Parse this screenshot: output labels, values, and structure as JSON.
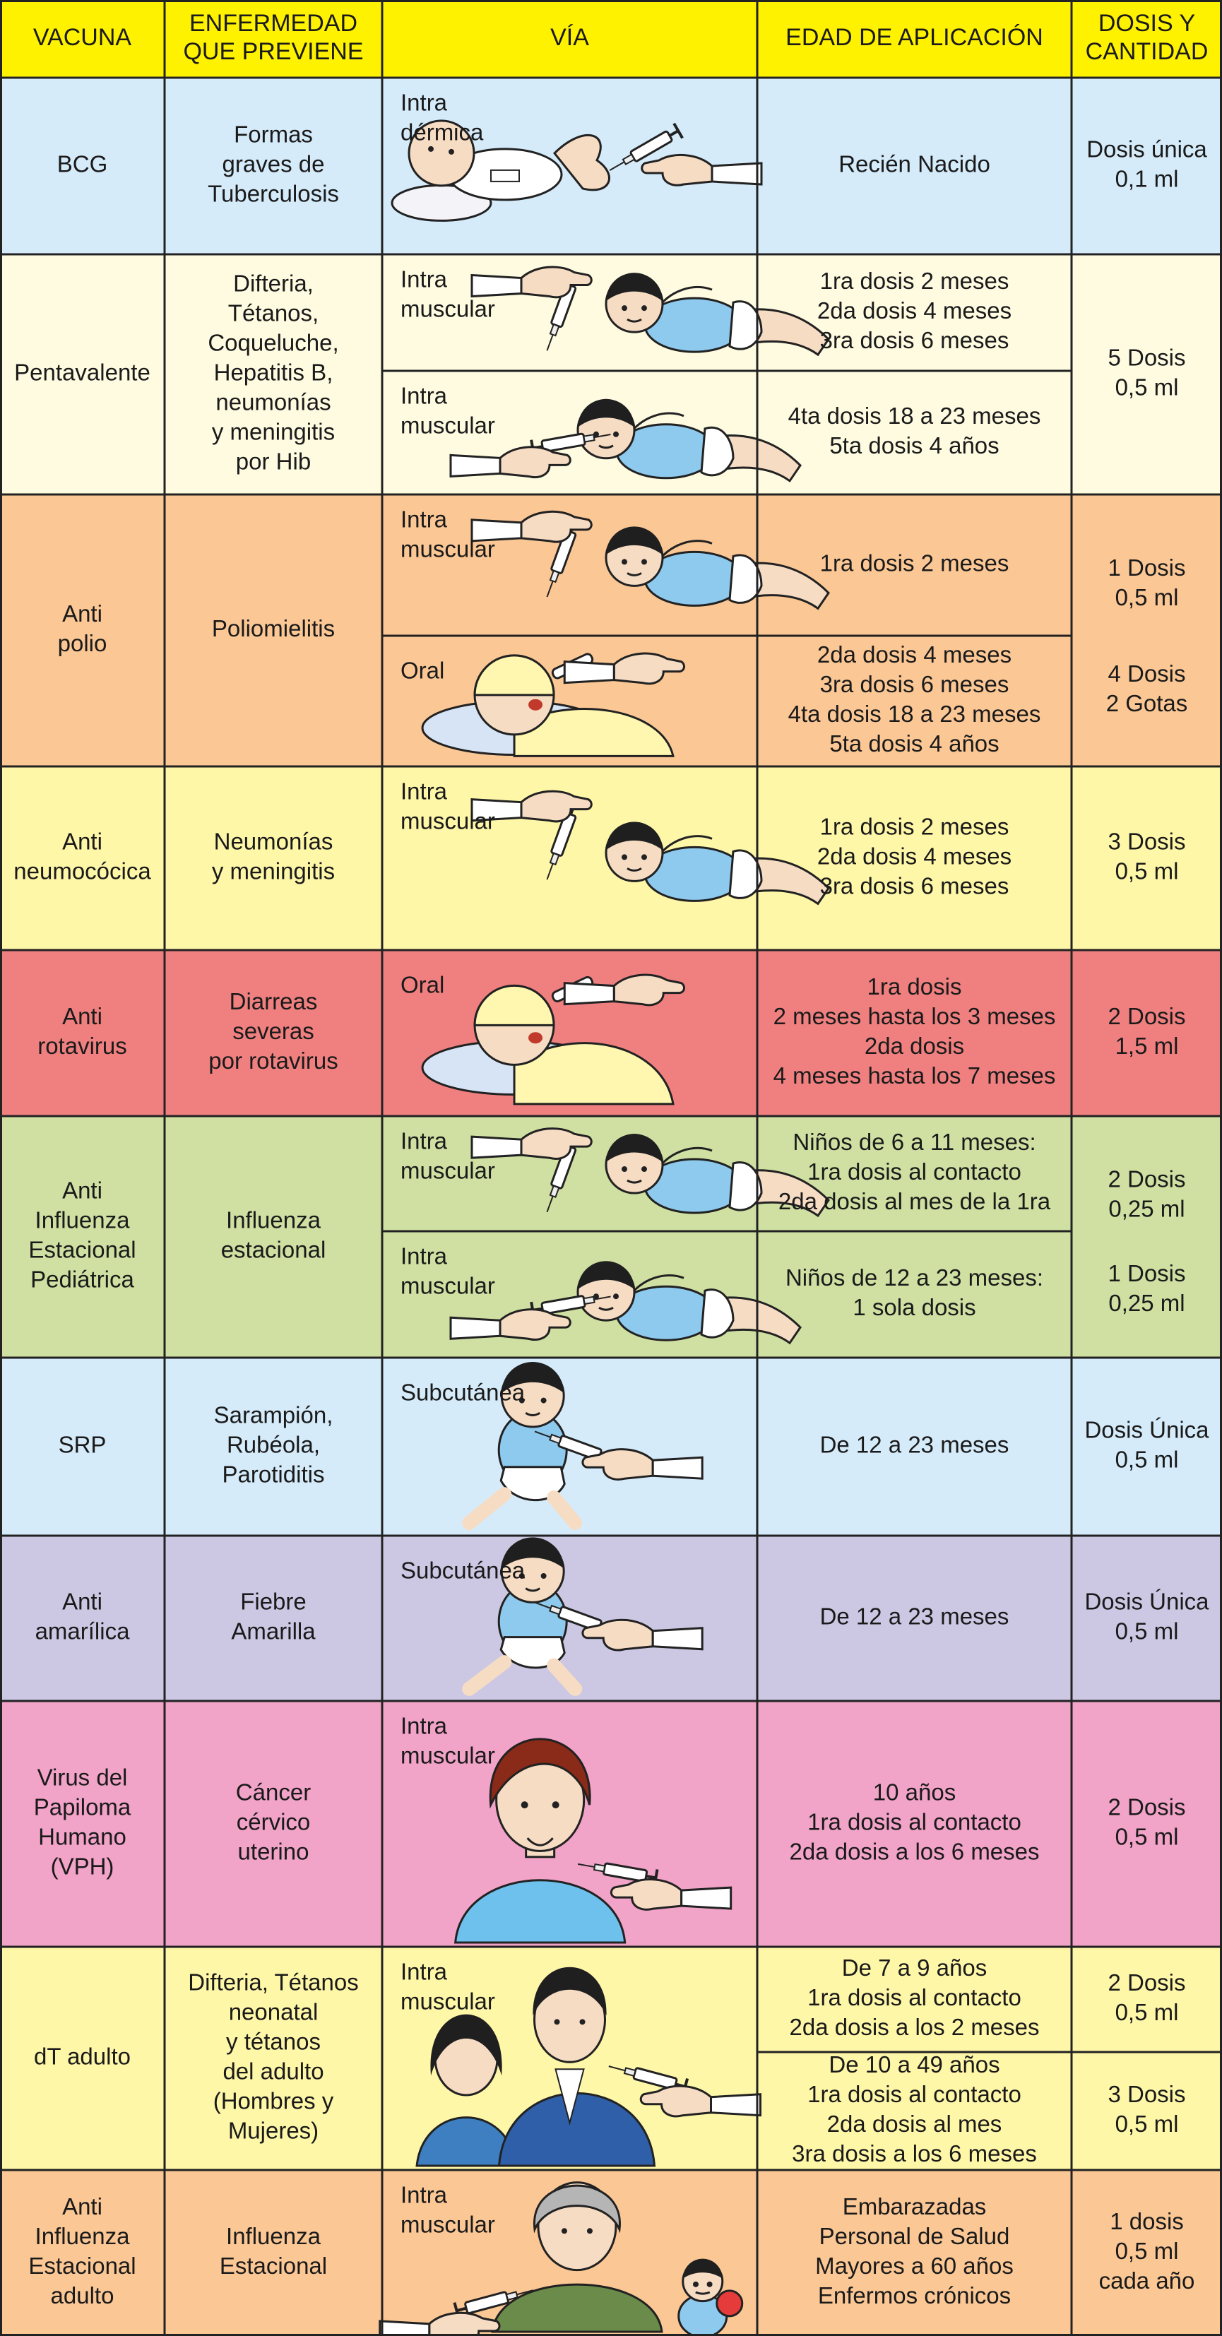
{
  "colors": {
    "header": "#fff200",
    "blue": "#d5ebfa",
    "cream": "#fefbe1",
    "orange": "#fbc795",
    "yellow": "#fff7a8",
    "red": "#f08080",
    "green": "#cfe0a2",
    "lavender": "#ccc8e4",
    "pink": "#f1a3c8",
    "border": "#222222"
  },
  "header": {
    "vacuna": [
      "VACUNA"
    ],
    "enfermedad": [
      "ENFERMEDAD",
      "QUE PREVIENE"
    ],
    "via": [
      "VÍA"
    ],
    "edad": [
      "EDAD DE APLICACIÓN"
    ],
    "dosis": [
      "DOSIS Y",
      "CANTIDAD"
    ]
  },
  "rows": [
    {
      "id": "bcg",
      "color": "blue",
      "vacuna": [
        "BCG"
      ],
      "enfermedad": [
        "Formas",
        "graves de",
        "Tuberculosis"
      ],
      "sub": [
        {
          "via": [
            "Intra",
            "dérmica"
          ],
          "icon": "baby-bcg-injection-icon",
          "edad": [
            "Recién Nacido"
          ]
        }
      ],
      "dosis": [
        [
          "Dosis única",
          "0,1 ml"
        ]
      ]
    },
    {
      "id": "pentavalente",
      "color": "cream",
      "vacuna": [
        "Pentavalente"
      ],
      "enfermedad": [
        "Difteria,",
        "Tétanos,",
        "Coqueluche,",
        "Hepatitis B,",
        "neumonías",
        "y meningitis",
        "por Hib"
      ],
      "sub": [
        {
          "via": [
            "Intra",
            "muscular"
          ],
          "icon": "baby-thigh-injection-icon",
          "edad": [
            "1ra  dosis  2 meses",
            "2da  dosis 4 meses",
            "3ra  dosis 6 meses"
          ]
        },
        {
          "via": [
            "Intra",
            "muscular"
          ],
          "icon": "baby-arm-injection-icon",
          "edad": [
            "4ta dosis 18 a 23 meses",
            "5ta dosis 4 años"
          ]
        }
      ],
      "dosis": [
        [
          "5 Dosis",
          "0,5 ml"
        ]
      ]
    },
    {
      "id": "antipolio",
      "color": "orange",
      "vacuna": [
        "Anti",
        "polio"
      ],
      "enfermedad": [
        "Poliomielitis"
      ],
      "sub": [
        {
          "via": [
            "Intra",
            "muscular"
          ],
          "icon": "baby-thigh-injection-icon",
          "edad": [
            "1ra  dosis  2 meses"
          ]
        },
        {
          "via": [
            "Oral"
          ],
          "icon": "baby-oral-drops-icon",
          "edad": [
            "2da  dosis 4 meses",
            "3ra  dosis 6 meses",
            "4ta dosis 18 a 23 meses",
            "5ta dosis 4 años"
          ]
        }
      ],
      "dosis": [
        [
          "1 Dosis",
          "0,5 ml"
        ],
        [
          "4 Dosis",
          "2 Gotas"
        ]
      ]
    },
    {
      "id": "antineumococica",
      "color": "yellow",
      "vacuna": [
        "Anti",
        "neumocócica"
      ],
      "enfermedad": [
        "Neumonías",
        "y meningitis"
      ],
      "sub": [
        {
          "via": [
            "Intra",
            "muscular"
          ],
          "icon": "baby-thigh-injection-icon",
          "edad": [
            "1ra  dosis  2 meses",
            "2da  dosis 4 meses",
            "3ra  dosis 6 meses"
          ]
        }
      ],
      "dosis": [
        [
          "3 Dosis",
          "0,5 ml"
        ]
      ]
    },
    {
      "id": "antirotavirus",
      "color": "red",
      "vacuna": [
        "Anti",
        "rotavirus"
      ],
      "enfermedad": [
        "Diarreas",
        "severas",
        "por rotavirus"
      ],
      "sub": [
        {
          "via": [
            "Oral"
          ],
          "icon": "baby-oral-drops-icon",
          "edad": [
            "1ra dosis",
            "2 meses hasta los 3 meses",
            "2da dosis",
            "4 meses hasta los 7 meses"
          ]
        }
      ],
      "dosis": [
        [
          "2 Dosis",
          "1,5 ml"
        ]
      ]
    },
    {
      "id": "antiinfluenza-pediatrica",
      "color": "green",
      "vacuna": [
        "Anti",
        "Influenza",
        "Estacional",
        "Pediátrica"
      ],
      "enfermedad": [
        "Influenza",
        "estacional"
      ],
      "sub": [
        {
          "via": [
            "Intra",
            "muscular"
          ],
          "icon": "baby-thigh-injection-icon",
          "edad": [
            "Niños de 6 a 11 meses:",
            "1ra dosis al contacto",
            "2da dosis al mes de la 1ra"
          ]
        },
        {
          "via": [
            "Intra",
            "muscular"
          ],
          "icon": "baby-arm-injection-icon",
          "edad": [
            "Niños de 12 a 23 meses:",
            "1 sola dosis"
          ]
        }
      ],
      "dosis": [
        [
          "2 Dosis",
          "0,25 ml"
        ],
        [
          "1 Dosis",
          "0,25 ml"
        ]
      ]
    },
    {
      "id": "srp",
      "color": "blue",
      "vacuna": [
        "SRP"
      ],
      "enfermedad": [
        "Sarampión,",
        "Rubéola,",
        "Parotiditis"
      ],
      "sub": [
        {
          "via": [
            "Subcutánea"
          ],
          "icon": "toddler-arm-injection-icon",
          "edad": [
            "De 12 a 23 meses"
          ]
        }
      ],
      "dosis": [
        [
          "Dosis Única",
          "0,5 ml"
        ]
      ]
    },
    {
      "id": "antiamarilica",
      "color": "lavender",
      "vacuna": [
        "Anti",
        "amarílica"
      ],
      "enfermedad": [
        "Fiebre",
        "Amarilla"
      ],
      "sub": [
        {
          "via": [
            "Subcutánea"
          ],
          "icon": "toddler-arm-injection-icon",
          "edad": [
            "De 12 a 23 meses"
          ]
        }
      ],
      "dosis": [
        [
          "Dosis Única",
          "0,5 ml"
        ]
      ]
    },
    {
      "id": "vph",
      "color": "pink",
      "vacuna": [
        "Virus del",
        "Papiloma",
        "Humano",
        "(VPH)"
      ],
      "enfermedad": [
        "Cáncer",
        "cérvico",
        "uterino"
      ],
      "sub": [
        {
          "via": [
            "Intra",
            "muscular"
          ],
          "icon": "girl-arm-injection-icon",
          "edad": [
            "10 años",
            "1ra dosis al contacto",
            "2da dosis a los 6 meses"
          ]
        }
      ],
      "dosis": [
        [
          "2 Dosis",
          "0,5 ml"
        ]
      ]
    },
    {
      "id": "dt-adulto",
      "color": "yellow",
      "vacuna": [
        "dT adulto"
      ],
      "enfermedad": [
        "Difteria, Tétanos",
        "neonatal",
        "y tétanos",
        "del adulto",
        "(Hombres y",
        "Mujeres)"
      ],
      "via": [
        "Intra",
        "muscular"
      ],
      "icon": "adults-arm-injection-icon",
      "edad": [
        [
          "De 7 a 9 años",
          "1ra dosis al contacto",
          "2da dosis a los 2 meses"
        ],
        [
          "De 10 a 49 años",
          "1ra dosis al contacto",
          "2da dosis al mes",
          "3ra dosis a los 6 meses"
        ]
      ],
      "dosis": [
        [
          "2 Dosis",
          "0,5 ml"
        ],
        [
          "3 Dosis",
          "0,5 ml"
        ]
      ]
    },
    {
      "id": "antiinfluenza-adulto",
      "color": "orange",
      "vacuna": [
        "Anti",
        "Influenza",
        "Estacional",
        "adulto"
      ],
      "enfermedad": [
        "Influenza",
        "Estacional"
      ],
      "sub": [
        {
          "via": [
            "Intra",
            "muscular"
          ],
          "icon": "grandmother-injection-icon",
          "edad": [
            "Embarazadas",
            "Personal de Salud",
            "Mayores a 60 años",
            "Enfermos crónicos"
          ]
        }
      ],
      "dosis": [
        [
          "1 dosis",
          "0,5 ml",
          "cada año"
        ]
      ]
    }
  ]
}
